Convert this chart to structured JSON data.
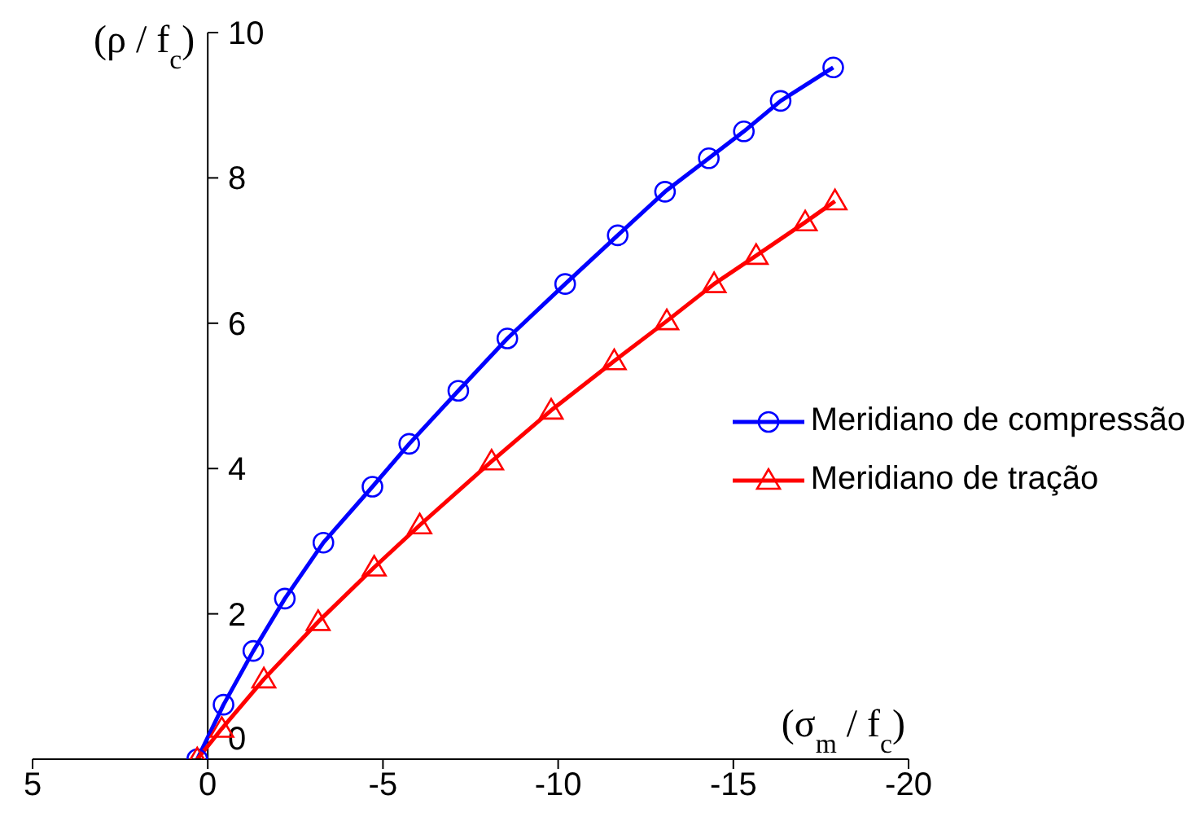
{
  "chart_data": {
    "type": "line",
    "xlabel": "(σ$_{m}$ / f$_{c}$)",
    "ylabel": "(ρ / f$_{c}$)",
    "xlim": [
      5,
      -20
    ],
    "xticks": [
      5,
      0,
      -5,
      -10,
      -15,
      -20
    ],
    "ylim": [
      0,
      10
    ],
    "yticks": [
      0,
      2,
      4,
      6,
      8,
      10
    ],
    "grid": false,
    "legend": "right",
    "line_style": "solid",
    "series": [
      {
        "name": "Meridiano de compressão",
        "color": "#0000ff",
        "marker": "circle",
        "x": [
          0.3,
          -0.45,
          -1.3,
          -2.2,
          -3.3,
          -4.7,
          -5.75,
          -7.15,
          -8.55,
          -10.2,
          -11.7,
          -13.05,
          -14.3,
          -15.3,
          -16.35,
          -17.85
        ],
        "values": [
          0,
          0.75,
          1.49,
          2.21,
          2.98,
          3.75,
          4.34,
          5.07,
          5.79,
          6.54,
          7.21,
          7.81,
          8.27,
          8.64,
          9.06,
          9.52
        ]
      },
      {
        "name": "Meridiano de tração",
        "color": "#ff0000",
        "marker": "triangle",
        "x": [
          0.3,
          -0.4,
          -1.6,
          -3.15,
          -4.75,
          -6.05,
          -8.1,
          -9.8,
          -11.6,
          -13.1,
          -14.45,
          -15.65,
          -17.05,
          -17.9
        ],
        "values": [
          0,
          0.42,
          1.1,
          1.89,
          2.64,
          3.22,
          4.1,
          4.8,
          5.48,
          6.03,
          6.54,
          6.93,
          7.39,
          7.68
        ]
      }
    ]
  }
}
